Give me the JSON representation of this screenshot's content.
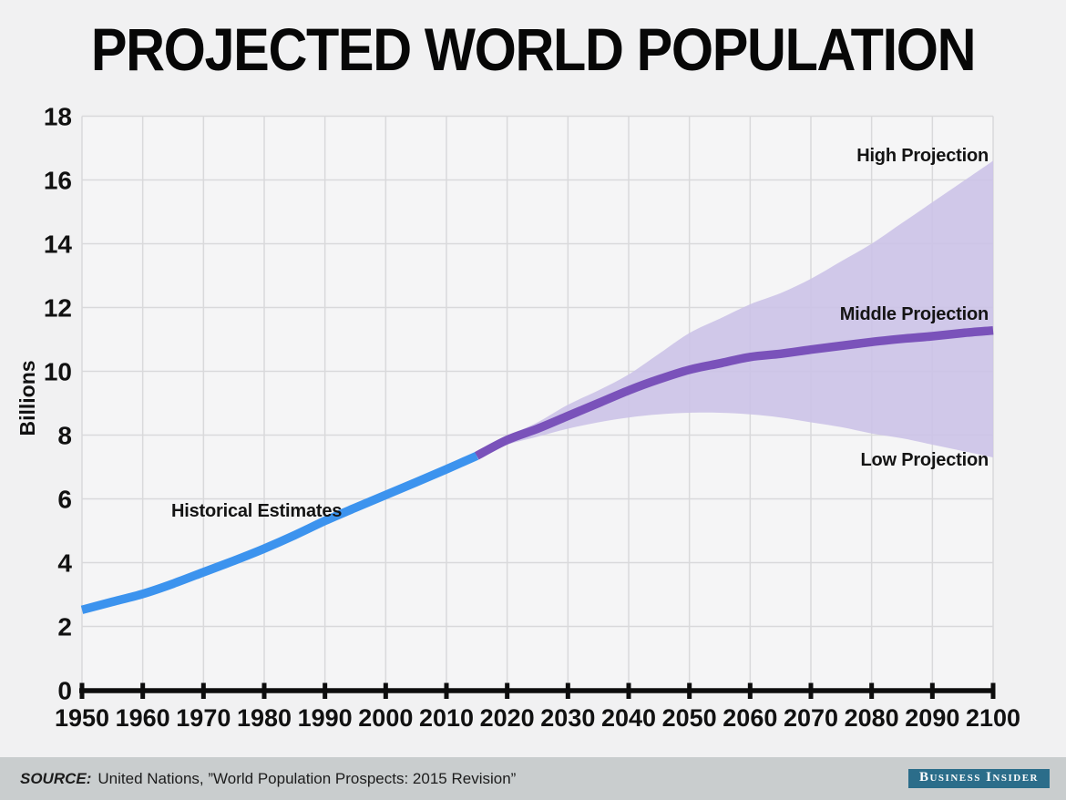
{
  "chart_data": {
    "type": "line",
    "title": "PROJECTED WORLD POPULATION",
    "xlabel": "",
    "ylabel": "Billions",
    "xlim": [
      1950,
      2100
    ],
    "ylim": [
      0,
      18
    ],
    "x_ticks": [
      1950,
      1960,
      1970,
      1980,
      1990,
      2000,
      2010,
      2020,
      2030,
      2040,
      2050,
      2060,
      2070,
      2080,
      2090,
      2100
    ],
    "y_ticks": [
      0,
      2,
      4,
      6,
      8,
      10,
      12,
      14,
      16,
      18
    ],
    "grid": true,
    "legend_position": "inline-annotations",
    "band_color": "#cbc2e7",
    "annotations": [
      {
        "label": "Historical Estimates"
      },
      {
        "label": "High Projection"
      },
      {
        "label": "Middle Projection"
      },
      {
        "label": "Low Projection"
      }
    ],
    "series": [
      {
        "id": "historical",
        "name": "Historical Estimates",
        "style": "line",
        "color": "#3c93ee",
        "points": [
          [
            1950,
            2.52
          ],
          [
            1955,
            2.77
          ],
          [
            1960,
            3.02
          ],
          [
            1965,
            3.34
          ],
          [
            1970,
            3.7
          ],
          [
            1975,
            4.06
          ],
          [
            1980,
            4.44
          ],
          [
            1985,
            4.86
          ],
          [
            1990,
            5.31
          ],
          [
            1995,
            5.72
          ],
          [
            2000,
            6.12
          ],
          [
            2005,
            6.52
          ],
          [
            2010,
            6.93
          ],
          [
            2015,
            7.35
          ]
        ]
      },
      {
        "id": "middle",
        "name": "Middle Projection",
        "style": "line",
        "color": "#7a52ba",
        "points": [
          [
            2015,
            7.35
          ],
          [
            2020,
            7.85
          ],
          [
            2025,
            8.2
          ],
          [
            2030,
            8.6
          ],
          [
            2035,
            9.0
          ],
          [
            2040,
            9.4
          ],
          [
            2045,
            9.75
          ],
          [
            2050,
            10.05
          ],
          [
            2055,
            10.25
          ],
          [
            2060,
            10.45
          ],
          [
            2065,
            10.55
          ],
          [
            2070,
            10.68
          ],
          [
            2075,
            10.8
          ],
          [
            2080,
            10.92
          ],
          [
            2085,
            11.02
          ],
          [
            2090,
            11.1
          ],
          [
            2095,
            11.2
          ],
          [
            2100,
            11.28
          ]
        ]
      },
      {
        "id": "high",
        "name": "High Projection",
        "style": "band-upper-edge",
        "color": "#cbc2e7",
        "points": [
          [
            2015,
            7.35
          ],
          [
            2020,
            7.95
          ],
          [
            2025,
            8.4
          ],
          [
            2030,
            8.95
          ],
          [
            2035,
            9.4
          ],
          [
            2040,
            9.9
          ],
          [
            2045,
            10.55
          ],
          [
            2050,
            11.2
          ],
          [
            2055,
            11.65
          ],
          [
            2060,
            12.1
          ],
          [
            2065,
            12.45
          ],
          [
            2070,
            12.9
          ],
          [
            2075,
            13.45
          ],
          [
            2080,
            14.0
          ],
          [
            2085,
            14.65
          ],
          [
            2090,
            15.3
          ],
          [
            2095,
            15.95
          ],
          [
            2100,
            16.6
          ]
        ]
      },
      {
        "id": "low",
        "name": "Low Projection",
        "style": "band-lower-edge",
        "color": "#cbc2e7",
        "points": [
          [
            2015,
            7.35
          ],
          [
            2020,
            7.7
          ],
          [
            2025,
            7.95
          ],
          [
            2030,
            8.2
          ],
          [
            2035,
            8.4
          ],
          [
            2040,
            8.55
          ],
          [
            2045,
            8.65
          ],
          [
            2050,
            8.7
          ],
          [
            2055,
            8.7
          ],
          [
            2060,
            8.65
          ],
          [
            2065,
            8.55
          ],
          [
            2070,
            8.4
          ],
          [
            2075,
            8.25
          ],
          [
            2080,
            8.05
          ],
          [
            2085,
            7.9
          ],
          [
            2090,
            7.7
          ],
          [
            2095,
            7.5
          ],
          [
            2100,
            7.3
          ]
        ]
      }
    ]
  },
  "footer": {
    "source_label": "SOURCE:",
    "source_text": "United Nations, ”World Population Prospects: 2015 Revision”",
    "brand": "Business Insider"
  }
}
